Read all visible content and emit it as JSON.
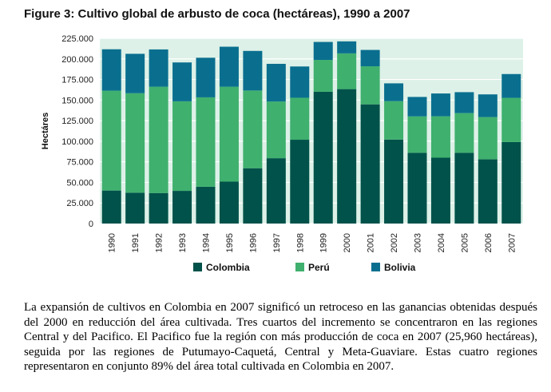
{
  "title": "Figure 3: Cultivo global de arbusto de coca (hectáreas), 1990 a 2007",
  "caption": "La expansión de cultivos en Colombia en 2007 significó un retroceso en las ganancias obtenidas después del 2000 en reducción del área cultivada.  Tres cuartos del incremento se concentraron en las regiones Central y del Pacifico. El Pacifico fue la región con más producción de coca en 2007 (25,960 hectáreas), seguida por las regiones de Putumayo-Caquetá, Central y Meta-Guaviare. Estas cuatro regiones representaron en conjunto 89% del área total cultivada en Colombia en 2007.",
  "chart_data": {
    "type": "bar",
    "stacked": true,
    "title": "",
    "xlabel": "",
    "ylabel": "Hectáres",
    "ylim": [
      0,
      225000
    ],
    "yticks": [
      0,
      25000,
      50000,
      75000,
      100000,
      125000,
      150000,
      175000,
      200000,
      225000
    ],
    "ytick_labels": [
      "0",
      "25.000",
      "50.000",
      "75.000",
      "100.000",
      "125.000",
      "150.000",
      "175.000",
      "200.000",
      "225.000"
    ],
    "grid": true,
    "legend": "bottom",
    "categories": [
      "1990",
      "1991",
      "1992",
      "1993",
      "1994",
      "1995",
      "1996",
      "1997",
      "1998",
      "1999",
      "2000",
      "2001",
      "2002",
      "2003",
      "2004",
      "2005",
      "2006",
      "2007"
    ],
    "series": [
      {
        "name": "Colombia",
        "color": "#00524a",
        "values": [
          40100,
          37500,
          37100,
          39700,
          44700,
          50900,
          67200,
          79400,
          101800,
          160100,
          163300,
          144800,
          102000,
          86000,
          80000,
          86000,
          78000,
          99000
        ]
      },
      {
        "name": "Perú",
        "color": "#3fb06e",
        "values": [
          121300,
          120800,
          129100,
          108800,
          108600,
          115300,
          94400,
          68800,
          51000,
          38700,
          43400,
          46200,
          46700,
          44200,
          50300,
          48200,
          51400,
          53700
        ]
      },
      {
        "name": "Bolivia",
        "color": "#0a6f8f",
        "values": [
          50300,
          47900,
          45300,
          47200,
          48100,
          48600,
          48100,
          45800,
          38000,
          21800,
          14600,
          19900,
          21600,
          23600,
          27700,
          25400,
          27500,
          28900
        ]
      }
    ]
  }
}
